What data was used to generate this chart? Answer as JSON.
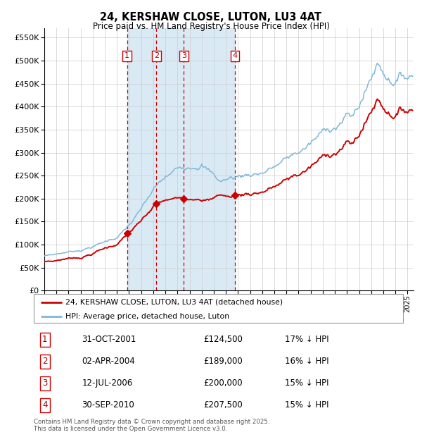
{
  "title": "24, KERSHAW CLOSE, LUTON, LU3 4AT",
  "subtitle": "Price paid vs. HM Land Registry's House Price Index (HPI)",
  "footer": "Contains HM Land Registry data © Crown copyright and database right 2025.\nThis data is licensed under the Open Government Licence v3.0.",
  "legend_property": "24, KERSHAW CLOSE, LUTON, LU3 4AT (detached house)",
  "legend_hpi": "HPI: Average price, detached house, Luton",
  "transactions": [
    {
      "label": "1",
      "date": "31-OCT-2001",
      "price": 124500,
      "hpi_note": "17% ↓ HPI",
      "x_year": 2001.83
    },
    {
      "label": "2",
      "date": "02-APR-2004",
      "price": 189000,
      "hpi_note": "16% ↓ HPI",
      "x_year": 2004.25
    },
    {
      "label": "3",
      "date": "12-JUL-2006",
      "price": 200000,
      "hpi_note": "15% ↓ HPI",
      "x_year": 2006.53
    },
    {
      "label": "4",
      "date": "30-SEP-2010",
      "price": 207500,
      "hpi_note": "15% ↓ HPI",
      "x_year": 2010.75
    }
  ],
  "hpi_color": "#7fb8d8",
  "property_color": "#cc0000",
  "vline_color": "#cc0000",
  "shade_color": "#daeaf5",
  "background_color": "#ffffff",
  "grid_color": "#cccccc",
  "ylim": [
    0,
    570000
  ],
  "xlim_start": 1995,
  "xlim_end": 2025.5
}
